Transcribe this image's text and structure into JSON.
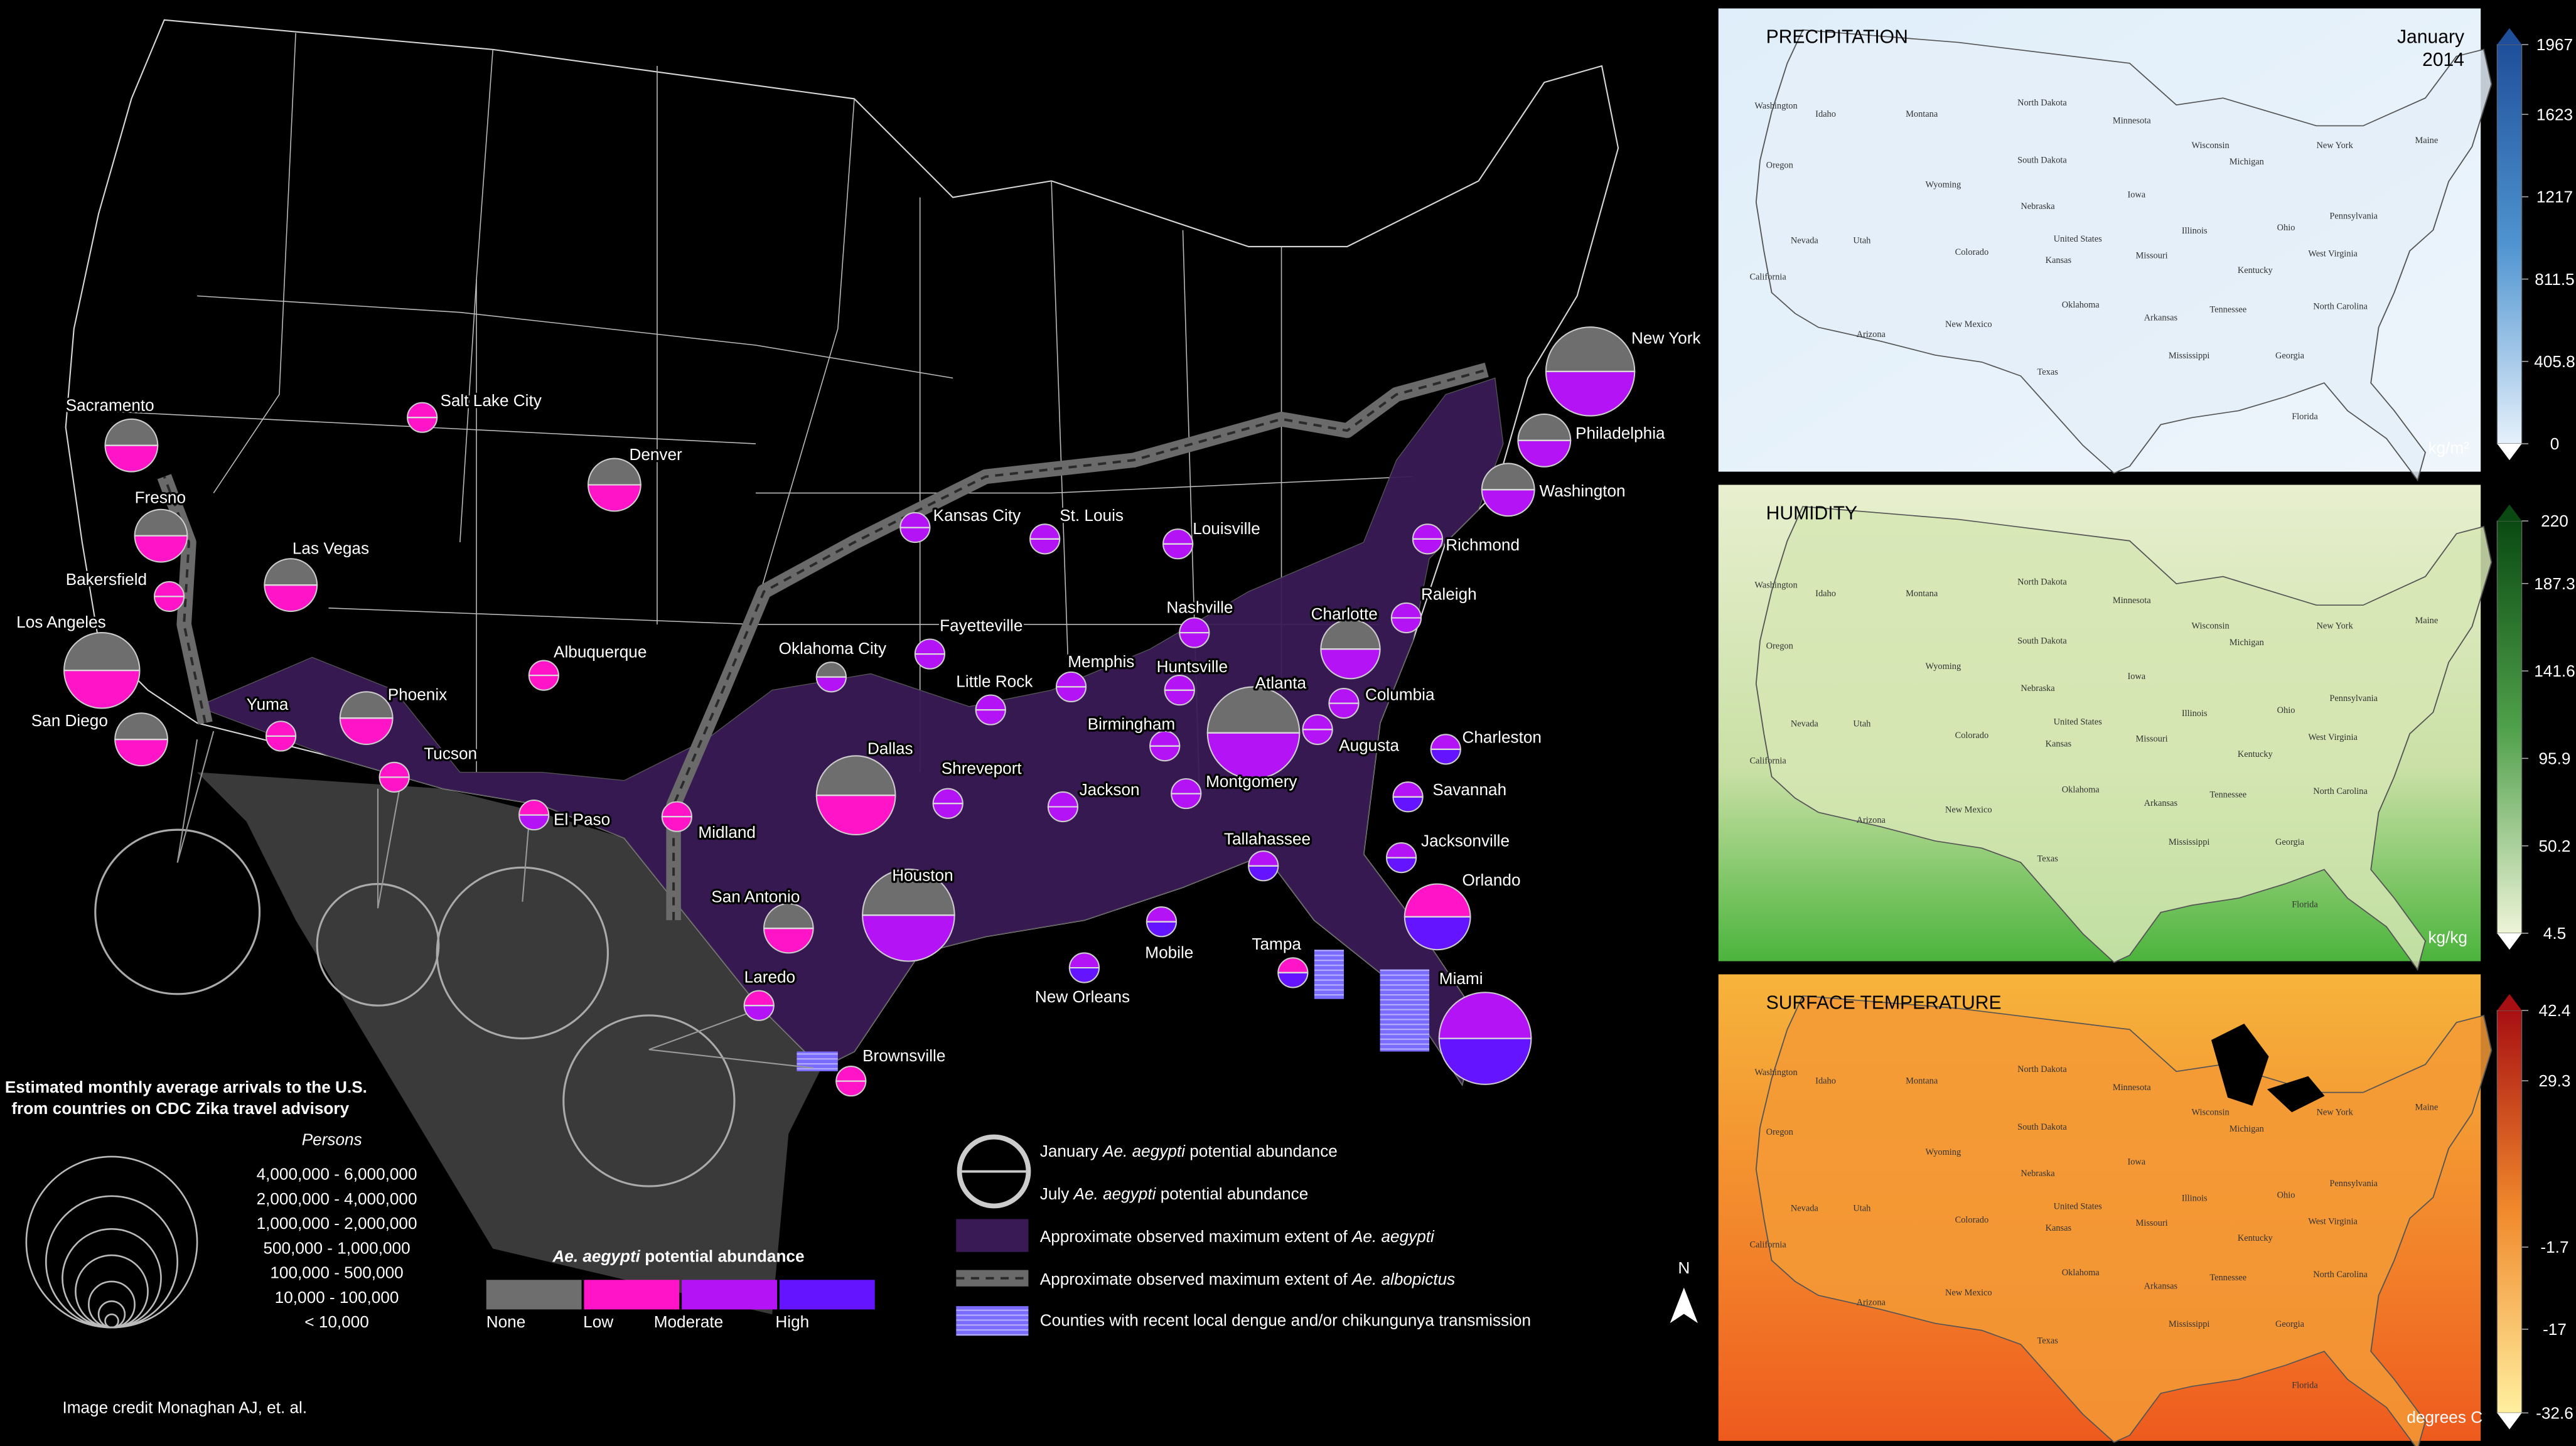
{
  "cities": [
    "New York",
    "Philadelphia",
    "Washington",
    "Richmond",
    "Raleigh",
    "Charlotte",
    "Columbia",
    "Charleston",
    "Augusta",
    "Savannah",
    "Jacksonville",
    "Orlando",
    "Tampa",
    "Miami",
    "Tallahassee",
    "Atlanta",
    "Montgomery",
    "Birmingham",
    "Huntsville",
    "Nashville",
    "Louisville",
    "Memphis",
    "Jackson",
    "Mobile",
    "New Orleans",
    "St. Louis",
    "Kansas City",
    "Fayetteville",
    "Little Rock",
    "Shreveport",
    "Houston",
    "Dallas",
    "Oklahoma City",
    "San Antonio",
    "Laredo",
    "Brownsville",
    "Midland",
    "El Paso",
    "Tucson",
    "Phoenix",
    "Yuma",
    "Albuquerque",
    "Denver",
    "Salt Lake City",
    "Las Vegas",
    "Sacramento",
    "Fresno",
    "Bakersfield",
    "Los Angeles",
    "San Diego"
  ],
  "arrivals_legend": {
    "title_lines": [
      "Estimated monthly average arrivals to the U.S.",
      "from countries on CDC Zika travel advisory"
    ],
    "unit": "Persons",
    "ranges": [
      "4,000,000  -  6,000,000",
      "2,000,000  -  4,000,000",
      "1,000,000  -  2,000,000",
      "500,000  -  1,000,000",
      "100,000  -  500,000",
      "10,000  -  100,000",
      "< 10,000"
    ]
  },
  "abundance_legend": {
    "species": "Ae. aegypti",
    "rest": " potential abundance",
    "levels": [
      "None",
      "Low",
      "Moderate",
      "High"
    ]
  },
  "symbol_legend": [
    {
      "before": "January ",
      "species": "Ae. aegypti",
      "after": " potential abundance"
    },
    {
      "before": "July ",
      "species": "Ae. aegypti",
      "after": " potential abundance"
    },
    {
      "before": "Approximate observed maximum extent of ",
      "species": "Ae. aegypti"
    },
    {
      "before": "Approximate observed maximum extent of ",
      "species": "Ae. albopictus"
    },
    {
      "before": "Counties with recent local dengue and/or chikungunya transmission"
    }
  ],
  "north": "N",
  "credit": "Image credit Monaghan AJ, et. al.",
  "panels": [
    {
      "title": "PRECIPITATION",
      "date": [
        "January",
        "2014"
      ],
      "unit": "kg/m²",
      "ticks": [
        1967,
        1623,
        1217,
        811.5,
        405.8,
        0
      ]
    },
    {
      "title": "HUMIDITY",
      "unit": "kg/kg",
      "ticks": [
        220,
        187.3,
        141.6,
        95.9,
        50.2,
        4.5
      ]
    },
    {
      "title": "SURFACE TEMPERATURE",
      "unit": "degrees C",
      "ticks": [
        42.4,
        29.3,
        -1.7,
        -17,
        -32.6
      ]
    }
  ],
  "panel_state_labels": [
    "Washington",
    "Oregon",
    "Montana",
    "North Dakota",
    "Minnesota",
    "South Dakota",
    "Wisconsin",
    "Michigan",
    "Idaho",
    "Wyoming",
    "Iowa",
    "Nebraska",
    "Nevada",
    "Utah",
    "Colorado",
    "Illinois",
    "Ohio",
    "Pennsylvania",
    "Kansas",
    "Missouri",
    "Kentucky",
    "West Virginia",
    "California",
    "Arizona",
    "New Mexico",
    "Oklahoma",
    "Arkansas",
    "Tennessee",
    "North Carolina",
    "Texas",
    "Mississippi",
    "Georgia",
    "Florida",
    "New York",
    "Maine",
    "United States"
  ]
}
